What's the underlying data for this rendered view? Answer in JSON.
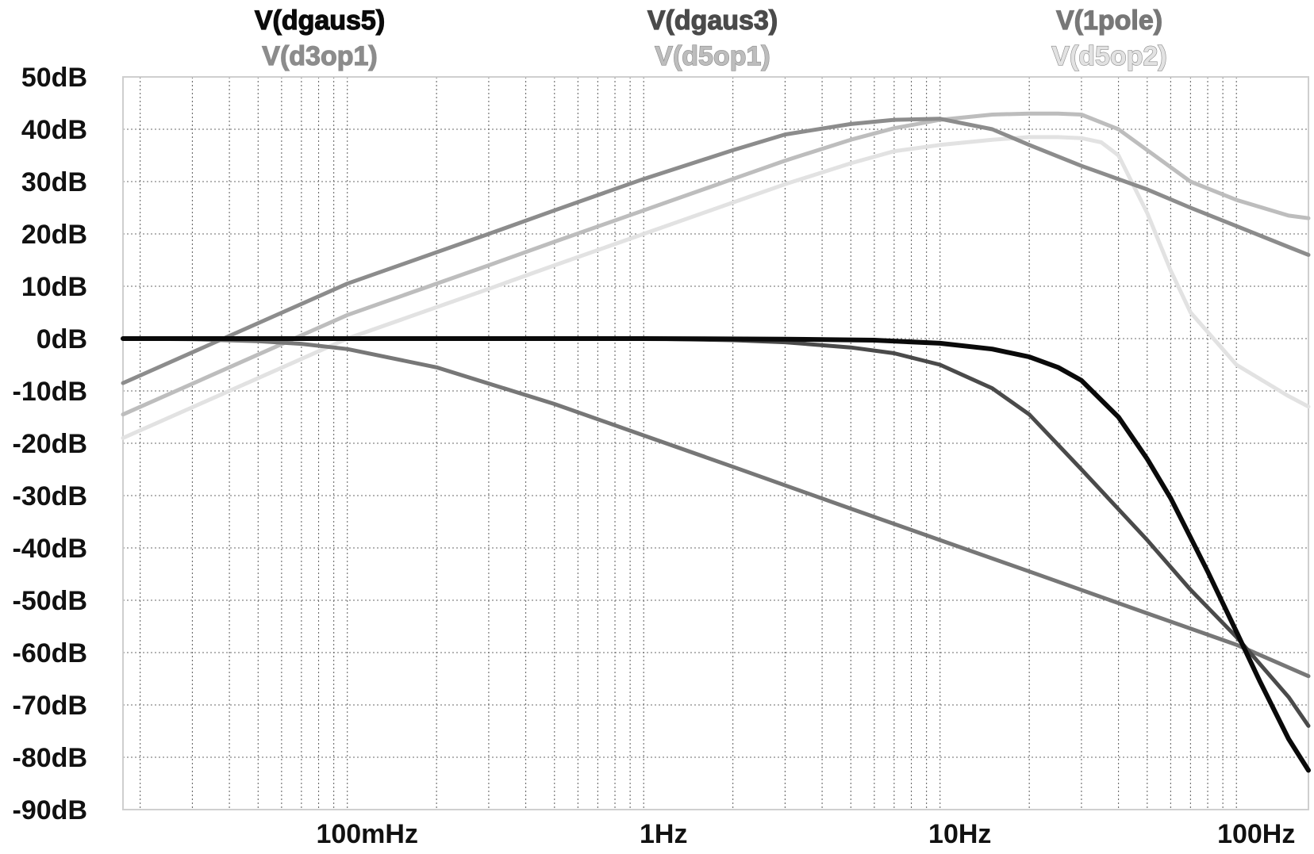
{
  "chart_data": {
    "type": "line",
    "title": "",
    "xlabel": "",
    "ylabel": "",
    "x_scale": "log",
    "xlim": [
      0.0175,
      175
    ],
    "ylim": [
      -90,
      50
    ],
    "grid": true,
    "y_ticks": [
      {
        "value": 50,
        "label": "50dB"
      },
      {
        "value": 40,
        "label": "40dB"
      },
      {
        "value": 30,
        "label": "30dB"
      },
      {
        "value": 20,
        "label": "20dB"
      },
      {
        "value": 10,
        "label": "10dB"
      },
      {
        "value": 0,
        "label": "0dB"
      },
      {
        "value": -10,
        "label": "-10dB"
      },
      {
        "value": -20,
        "label": "-20dB"
      },
      {
        "value": -30,
        "label": "-30dB"
      },
      {
        "value": -40,
        "label": "-40dB"
      },
      {
        "value": -50,
        "label": "-50dB"
      },
      {
        "value": -60,
        "label": "-60dB"
      },
      {
        "value": -70,
        "label": "-70dB"
      },
      {
        "value": -80,
        "label": "-80dB"
      },
      {
        "value": -90,
        "label": "-90dB"
      }
    ],
    "x_ticks": [
      {
        "value": 0.1,
        "label": "100mHz"
      },
      {
        "value": 1,
        "label": "1Hz"
      },
      {
        "value": 10,
        "label": "10Hz"
      },
      {
        "value": 100,
        "label": "100Hz"
      }
    ],
    "legend": [
      {
        "name": "V(dgaus5)",
        "position": "top-left-upper"
      },
      {
        "name": "V(d3op1)",
        "position": "top-left-lower"
      },
      {
        "name": "V(dgaus3)",
        "position": "top-center-upper"
      },
      {
        "name": "V(d5op1)",
        "position": "top-center-lower"
      },
      {
        "name": "V(1pole)",
        "position": "top-right-upper"
      },
      {
        "name": "V(d5op2)",
        "position": "top-right-lower"
      }
    ],
    "series": [
      {
        "name": "V(dgaus5)",
        "color": "#0a0a0a",
        "width": 6,
        "x": [
          0.0175,
          1,
          3,
          6,
          10,
          15,
          20,
          25,
          30,
          40,
          50,
          60,
          70,
          80,
          100,
          120,
          150,
          175
        ],
        "y": [
          0,
          0,
          -0.1,
          -0.3,
          -0.9,
          -2,
          -3.5,
          -5.5,
          -8,
          -15,
          -23,
          -30.5,
          -38,
          -44.5,
          -56,
          -65.5,
          -76.5,
          -82.5
        ]
      },
      {
        "name": "V(d3op1)",
        "color": "#8c8c8c",
        "width": 5,
        "x": [
          0.0175,
          0.1,
          0.3,
          0.5,
          1,
          2,
          3,
          5,
          7,
          10,
          15,
          20,
          30,
          50,
          70,
          100,
          150,
          175
        ],
        "y": [
          -8.5,
          10.5,
          20,
          24.5,
          30.5,
          36,
          39,
          41,
          41.8,
          42,
          40,
          37,
          33,
          28.5,
          25,
          21.5,
          17.5,
          16
        ]
      },
      {
        "name": "V(dgaus3)",
        "color": "#4a4a4a",
        "width": 5,
        "x": [
          0.0175,
          1,
          2,
          3,
          5,
          7,
          10,
          15,
          20,
          30,
          50,
          70,
          100,
          150,
          175
        ],
        "y": [
          0,
          0,
          -0.3,
          -0.7,
          -1.7,
          -2.8,
          -5,
          -9.5,
          -14.5,
          -25,
          -38.5,
          -48,
          -57,
          -68.5,
          -74
        ]
      },
      {
        "name": "V(d5op1)",
        "color": "#bdbdbd",
        "width": 5,
        "x": [
          0.0175,
          0.1,
          0.3,
          0.5,
          1,
          2,
          3,
          5,
          7,
          10,
          15,
          20,
          25,
          30,
          40,
          50,
          70,
          100,
          150,
          175
        ],
        "y": [
          -14.5,
          4.5,
          14,
          18.5,
          24.5,
          30.5,
          34,
          38,
          40.2,
          41.8,
          42.8,
          43,
          43,
          42.8,
          40,
          36,
          30,
          26.5,
          23.5,
          23
        ]
      },
      {
        "name": "V(1pole)",
        "color": "#777777",
        "width": 5,
        "x": [
          0.0175,
          0.03,
          0.05,
          0.07,
          0.1,
          0.2,
          0.5,
          1,
          2,
          5,
          10,
          20,
          50,
          100,
          175
        ],
        "y": [
          0,
          -0.1,
          -0.5,
          -1,
          -2,
          -5.5,
          -12.5,
          -18.5,
          -24.5,
          -32.5,
          -38.5,
          -44.5,
          -52.5,
          -58.5,
          -64.5
        ]
      },
      {
        "name": "V(d5op2)",
        "color": "#e2e2e2",
        "width": 5,
        "x": [
          0.0175,
          0.1,
          0.3,
          0.5,
          1,
          2,
          3,
          5,
          7,
          10,
          15,
          20,
          25,
          30,
          35,
          40,
          50,
          60,
          70,
          100,
          150,
          175
        ],
        "y": [
          -19,
          0,
          9.5,
          14,
          20,
          26,
          29.5,
          33.5,
          35.8,
          37,
          38,
          38.5,
          38.5,
          38.3,
          37.5,
          35,
          24,
          13,
          5,
          -5,
          -11,
          -13
        ]
      }
    ]
  }
}
